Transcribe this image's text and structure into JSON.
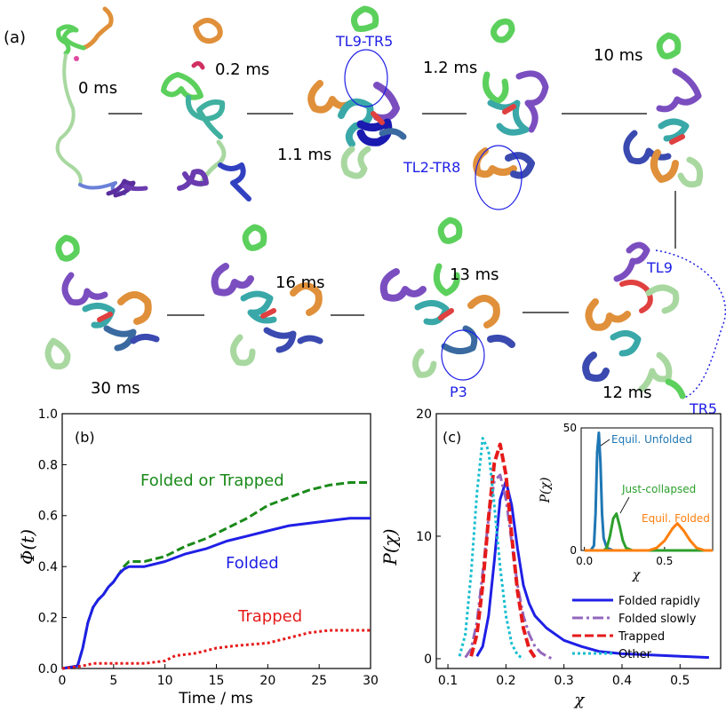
{
  "panel_a": {
    "label": "(a)",
    "times": [
      "0 ms",
      "0.2 ms",
      "1.1 ms",
      "1.2 ms",
      "10 ms",
      "30 ms",
      "16 ms",
      "13 ms",
      "12 ms"
    ],
    "annotations": {
      "tl9_tr5": "TL9-TR5",
      "tl2_tr8": "TL2-TR8",
      "p3": "P3",
      "tl9": "TL9",
      "tr5": "TR5"
    }
  },
  "panel_b": {
    "label": "(b)",
    "legend": {
      "folded_or_trapped": "Folded or Trapped",
      "folded": "Folded",
      "trapped": "Trapped"
    },
    "ylabel": "Φ(t)",
    "xlabel": "Time / ms",
    "xticks": [
      "0",
      "5",
      "10",
      "15",
      "20",
      "25",
      "30"
    ],
    "yticks": [
      "0.0",
      "0.2",
      "0.4",
      "0.6",
      "0.8",
      "1.0"
    ]
  },
  "panel_c": {
    "label": "(c)",
    "ylabel": "P(χ)",
    "xlabel": "χ",
    "xticks": [
      "0.1",
      "0.2",
      "0.3",
      "0.4",
      "0.5"
    ],
    "yticks": [
      "0",
      "10",
      "20"
    ],
    "legend": [
      "Folded rapidly",
      "Folded slowly",
      "Trapped",
      "Other"
    ],
    "inset": {
      "ylabel": "P(χ)",
      "xlabel": "χ",
      "xticks": [
        "0.0",
        "0.5"
      ],
      "yticks": [
        "0",
        "50"
      ],
      "labels": [
        "Equil. Unfolded",
        "Just-collapsed",
        "Equil. Folded"
      ]
    }
  },
  "colors": {
    "blue": "#1f1fe6",
    "green": "#1a8a1a",
    "red": "#e61a1a",
    "purple": "#9467bd",
    "cyan": "#17becf",
    "inset_blue": "#1f77b4",
    "inset_green": "#2ca02c",
    "inset_orange": "#ff7f0e"
  },
  "chart_data": [
    {
      "type": "line",
      "xlabel": "Time / ms",
      "ylabel": "Φ(t)",
      "xlim": [
        0,
        30
      ],
      "ylim": [
        0,
        1.0
      ],
      "series": [
        {
          "name": "Folded or Trapped",
          "x": [
            0,
            1.5,
            2,
            2.5,
            3,
            3.5,
            4,
            4.5,
            5,
            5.5,
            6,
            6.5,
            8,
            10,
            12,
            14,
            16,
            18,
            20,
            22,
            24,
            26,
            28,
            30
          ],
          "y": [
            0,
            0.01,
            0.08,
            0.18,
            0.24,
            0.27,
            0.29,
            0.32,
            0.34,
            0.37,
            0.4,
            0.42,
            0.42,
            0.44,
            0.48,
            0.51,
            0.55,
            0.59,
            0.64,
            0.67,
            0.7,
            0.72,
            0.73,
            0.73
          ]
        },
        {
          "name": "Folded",
          "x": [
            0,
            1.5,
            2,
            2.5,
            3,
            3.5,
            4,
            4.5,
            5,
            5.5,
            6,
            6.5,
            8,
            10,
            12,
            14,
            16,
            18,
            20,
            22,
            24,
            26,
            28,
            30
          ],
          "y": [
            0,
            0.01,
            0.08,
            0.18,
            0.24,
            0.27,
            0.29,
            0.32,
            0.34,
            0.37,
            0.39,
            0.4,
            0.4,
            0.42,
            0.45,
            0.47,
            0.5,
            0.52,
            0.54,
            0.56,
            0.57,
            0.58,
            0.59,
            0.59
          ]
        },
        {
          "name": "Trapped",
          "x": [
            0,
            2,
            3,
            5,
            8,
            10,
            11,
            13,
            15,
            17,
            20,
            22,
            24,
            26,
            28,
            30
          ],
          "y": [
            0,
            0.01,
            0.02,
            0.02,
            0.02,
            0.03,
            0.05,
            0.06,
            0.08,
            0.09,
            0.1,
            0.12,
            0.14,
            0.15,
            0.15,
            0.15
          ]
        }
      ]
    },
    {
      "type": "line",
      "xlabel": "χ",
      "ylabel": "P(χ)",
      "xlim": [
        0.08,
        0.57
      ],
      "ylim": [
        -0.8,
        20
      ],
      "series": [
        {
          "name": "Folded rapidly",
          "x": [
            0.15,
            0.16,
            0.17,
            0.18,
            0.19,
            0.2,
            0.21,
            0.22,
            0.23,
            0.24,
            0.25,
            0.27,
            0.3,
            0.33,
            0.36,
            0.4,
            0.45,
            0.5,
            0.55
          ],
          "y": [
            0.2,
            1.0,
            3.5,
            8.0,
            13.0,
            14.5,
            12.5,
            9.0,
            6.0,
            4.5,
            3.5,
            2.5,
            1.5,
            1.0,
            0.6,
            0.4,
            0.3,
            0.2,
            0.1
          ]
        },
        {
          "name": "Folded slowly",
          "x": [
            0.13,
            0.14,
            0.15,
            0.16,
            0.17,
            0.18,
            0.19,
            0.2,
            0.21,
            0.22,
            0.23,
            0.24,
            0.25,
            0.26,
            0.27,
            0.28
          ],
          "y": [
            0.1,
            0.8,
            3.0,
            7.0,
            11.5,
            14.5,
            15.0,
            13.0,
            9.5,
            6.0,
            3.5,
            2.0,
            1.0,
            0.5,
            0.2,
            0.0
          ]
        },
        {
          "name": "Trapped",
          "x": [
            0.14,
            0.15,
            0.16,
            0.17,
            0.18,
            0.19,
            0.2,
            0.21,
            0.22,
            0.23,
            0.24,
            0.25
          ],
          "y": [
            0.2,
            2.0,
            6.0,
            11.5,
            16.0,
            17.5,
            15.0,
            10.0,
            5.5,
            2.5,
            0.8,
            0.1
          ]
        },
        {
          "name": "Other",
          "x": [
            0.12,
            0.13,
            0.14,
            0.15,
            0.16,
            0.17,
            0.18,
            0.19,
            0.2,
            0.21,
            0.22,
            0.23
          ],
          "y": [
            0.2,
            2.0,
            7.0,
            13.5,
            18.0,
            17.0,
            12.5,
            7.5,
            3.5,
            1.2,
            0.3,
            0.0
          ]
        }
      ]
    },
    {
      "type": "line",
      "xlabel": "χ",
      "ylabel": "P(χ)",
      "xlim": [
        -0.02,
        0.8
      ],
      "ylim": [
        0,
        50
      ],
      "series": [
        {
          "name": "Equil. Unfolded",
          "x": [
            0.0,
            0.04,
            0.06,
            0.07,
            0.08,
            0.09,
            0.1,
            0.11,
            0.12,
            0.14,
            0.18,
            0.3,
            0.8
          ],
          "y": [
            0,
            0,
            2,
            15,
            40,
            48,
            36,
            15,
            5,
            1,
            0,
            0,
            0
          ]
        },
        {
          "name": "Just-collapsed",
          "x": [
            0.0,
            0.12,
            0.14,
            0.16,
            0.18,
            0.2,
            0.22,
            0.24,
            0.26,
            0.3,
            0.8
          ],
          "y": [
            0,
            0,
            1,
            6,
            13,
            15,
            10,
            4,
            1,
            0,
            0
          ]
        },
        {
          "name": "Equil. Folded",
          "x": [
            0.0,
            0.4,
            0.45,
            0.5,
            0.55,
            0.58,
            0.62,
            0.66,
            0.7,
            0.75,
            0.8
          ],
          "y": [
            0,
            0,
            1,
            4,
            9,
            11,
            8,
            4,
            1,
            0,
            0
          ]
        }
      ]
    }
  ]
}
